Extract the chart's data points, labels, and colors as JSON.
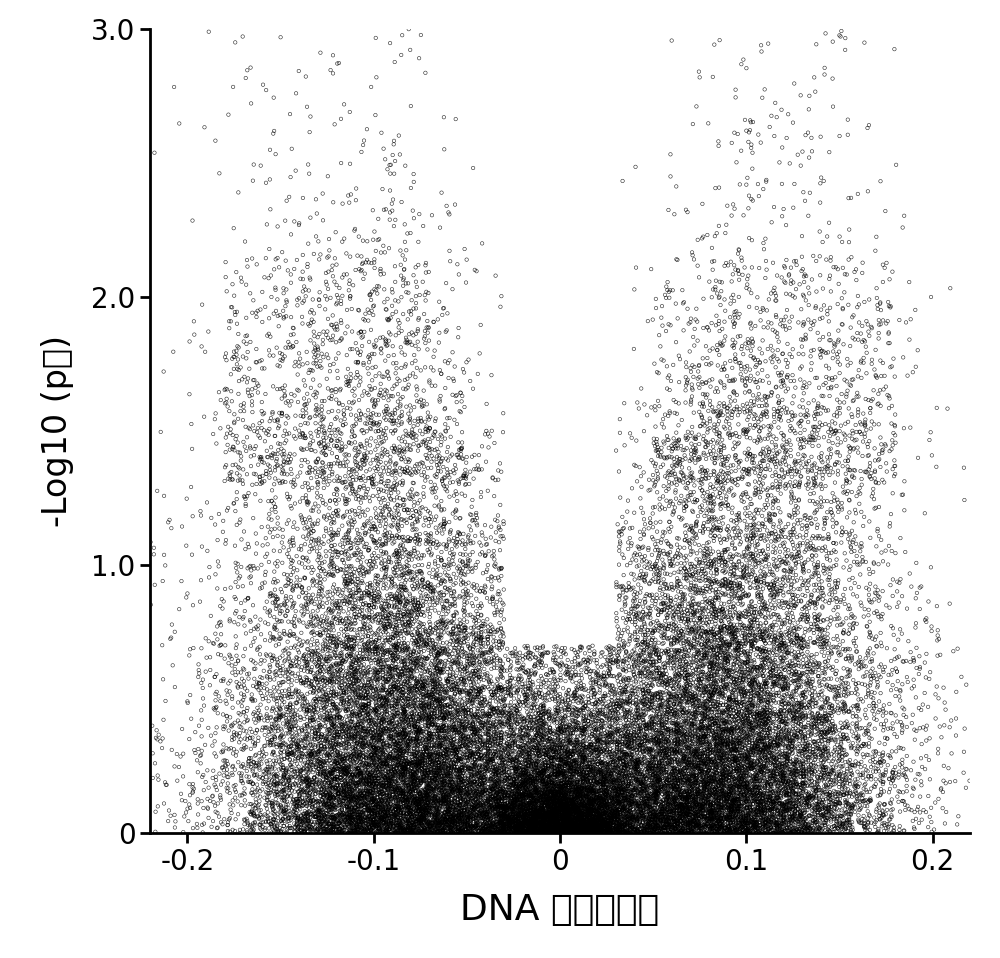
{
  "title": "",
  "xlabel": "DNA 甲基化差异",
  "ylabel": "-Log10 (p値)",
  "xlim": [
    -0.22,
    0.22
  ],
  "ylim": [
    0,
    3.0
  ],
  "xticks": [
    -0.2,
    -0.1,
    0,
    0.1,
    0.2
  ],
  "xtick_labels": [
    "-0.2",
    "-0.1",
    "0",
    "0.1",
    "0.2"
  ],
  "yticks": [
    0,
    1.0,
    2.0,
    3.0
  ],
  "ytick_labels": [
    "0",
    "1.0",
    "2.0",
    "3.0"
  ],
  "n_points": 45000,
  "seed": 42,
  "bg_color": "#ffffff",
  "marker_color": "black",
  "marker_size": 2.5,
  "marker_linewidth": 0.4,
  "tick_fontsize": 20,
  "label_fontsize": 26
}
